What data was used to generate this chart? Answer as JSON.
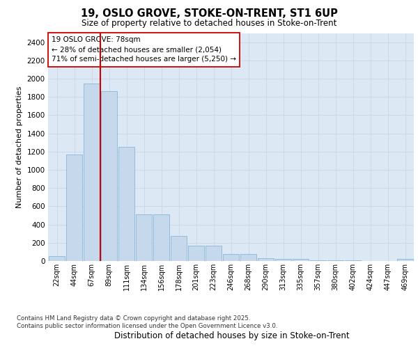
{
  "title": "19, OSLO GROVE, STOKE-ON-TRENT, ST1 6UP",
  "subtitle": "Size of property relative to detached houses in Stoke-on-Trent",
  "xlabel": "Distribution of detached houses by size in Stoke-on-Trent",
  "ylabel": "Number of detached properties",
  "bar_labels": [
    "22sqm",
    "44sqm",
    "67sqm",
    "89sqm",
    "111sqm",
    "134sqm",
    "156sqm",
    "178sqm",
    "201sqm",
    "223sqm",
    "246sqm",
    "268sqm",
    "290sqm",
    "313sqm",
    "335sqm",
    "357sqm",
    "380sqm",
    "402sqm",
    "424sqm",
    "447sqm",
    "469sqm"
  ],
  "bar_values": [
    50,
    1170,
    1950,
    1860,
    1250,
    510,
    510,
    275,
    165,
    165,
    75,
    75,
    30,
    20,
    20,
    10,
    10,
    5,
    3,
    3,
    20
  ],
  "bar_color": "#c5d8ec",
  "bar_edgecolor": "#7aadd4",
  "grid_color": "#c8d8ea",
  "background_color": "#dce9f5",
  "vline_color": "#cc0000",
  "vline_position": 2.5,
  "annotation_text": "19 OSLO GROVE: 78sqm\n← 28% of detached houses are smaller (2,054)\n71% of semi-detached houses are larger (5,250) →",
  "annotation_box_facecolor": "#ffffff",
  "annotation_box_edgecolor": "#cc0000",
  "ylim": [
    0,
    2500
  ],
  "yticks": [
    0,
    200,
    400,
    600,
    800,
    1000,
    1200,
    1400,
    1600,
    1800,
    2000,
    2200,
    2400
  ],
  "footer_line1": "Contains HM Land Registry data © Crown copyright and database right 2025.",
  "footer_line2": "Contains public sector information licensed under the Open Government Licence v3.0."
}
